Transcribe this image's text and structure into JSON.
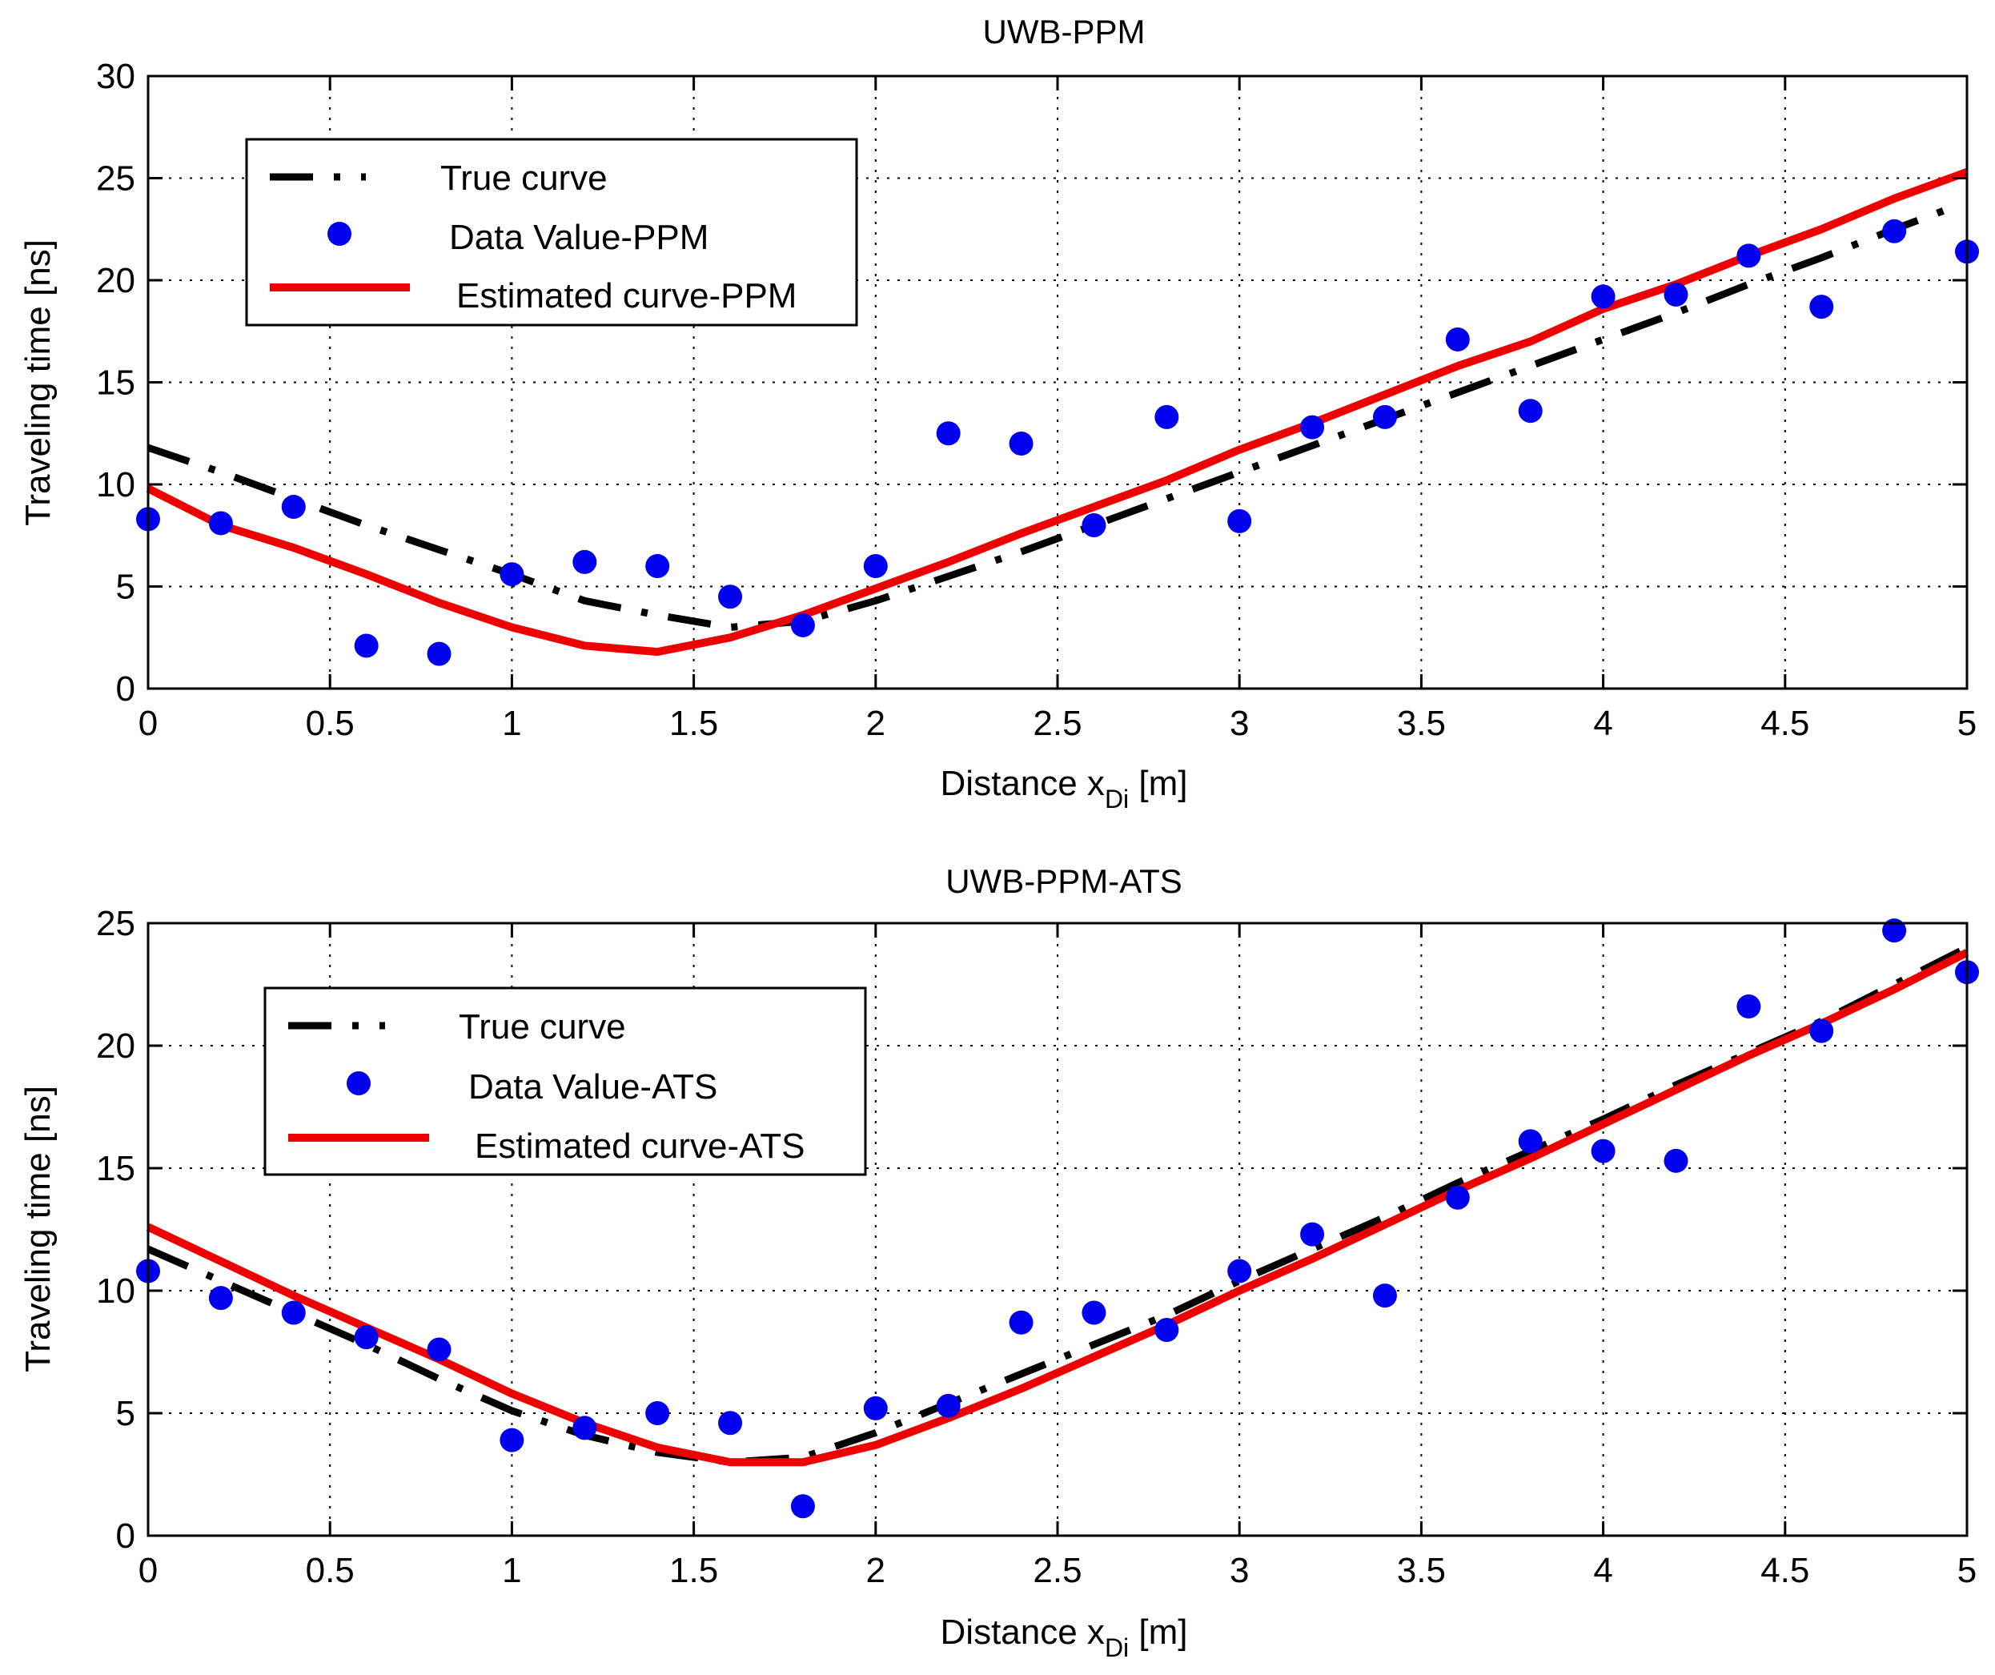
{
  "chart_data": [
    {
      "type": "line",
      "title": "UWB-PPM",
      "xlabel_main": "Distance x",
      "xlabel_sub": "Di",
      "xlabel_unit": " [m]",
      "ylabel": "Traveling time [ns]",
      "xlim": [
        0,
        5
      ],
      "ylim": [
        0,
        30
      ],
      "grid": true,
      "legend_position": "top-left",
      "x_ticks": [
        0,
        0.5,
        1,
        1.5,
        2,
        2.5,
        3,
        3.5,
        4,
        4.5,
        5
      ],
      "x_tick_labels": [
        "0",
        "0.5",
        "1",
        "1.5",
        "2",
        "2.5",
        "3",
        "3.5",
        "4",
        "4.5",
        "5"
      ],
      "y_ticks": [
        0,
        5,
        10,
        15,
        20,
        25,
        30
      ],
      "y_tick_labels": [
        "0",
        "5",
        "10",
        "15",
        "20",
        "25",
        "30"
      ],
      "series": [
        {
          "name": "True curve",
          "style": "dash-dot",
          "color": "#000000",
          "x": [
            0,
            0.2,
            0.4,
            0.6,
            0.8,
            1.0,
            1.2,
            1.4,
            1.6,
            1.8,
            2.0,
            2.2,
            2.4,
            2.6,
            2.8,
            3.0,
            3.2,
            3.4,
            3.6,
            3.8,
            4.0,
            4.2,
            4.4,
            4.6,
            4.8,
            4.95
          ],
          "y": [
            11.8,
            10.6,
            9.3,
            8.0,
            6.8,
            5.6,
            4.3,
            3.6,
            3.0,
            3.3,
            4.3,
            5.5,
            6.7,
            8.0,
            9.3,
            10.6,
            11.9,
            13.2,
            14.5,
            15.8,
            17.1,
            18.4,
            19.8,
            21.1,
            22.5,
            23.5
          ]
        },
        {
          "name": "Data Value-PPM",
          "style": "markers",
          "color": "#0000ee",
          "x": [
            0,
            0.2,
            0.4,
            0.6,
            0.8,
            1.0,
            1.2,
            1.4,
            1.6,
            1.8,
            2.0,
            2.2,
            2.4,
            2.6,
            2.8,
            3.0,
            3.2,
            3.4,
            3.6,
            3.8,
            4.0,
            4.2,
            4.4,
            4.6,
            4.8,
            5.0
          ],
          "y": [
            8.3,
            8.1,
            8.9,
            2.1,
            1.7,
            5.6,
            6.2,
            6.0,
            4.5,
            3.1,
            6.0,
            12.5,
            12.0,
            8.0,
            13.3,
            8.2,
            12.8,
            13.3,
            17.1,
            13.6,
            19.2,
            19.3,
            21.2,
            18.7,
            22.4,
            21.4
          ]
        },
        {
          "name": "Estimated curve-PPM",
          "style": "solid",
          "color": "#ee0000",
          "x": [
            0,
            0.2,
            0.4,
            0.6,
            0.8,
            1.0,
            1.2,
            1.4,
            1.6,
            1.8,
            2.0,
            2.2,
            2.4,
            2.6,
            2.8,
            3.0,
            3.2,
            3.4,
            3.6,
            3.8,
            4.0,
            4.2,
            4.4,
            4.6,
            4.8,
            5.0
          ],
          "y": [
            9.8,
            8.0,
            6.9,
            5.6,
            4.2,
            3.0,
            2.1,
            1.8,
            2.5,
            3.6,
            4.9,
            6.2,
            7.6,
            8.9,
            10.2,
            11.7,
            13.0,
            14.4,
            15.8,
            17.0,
            18.6,
            19.8,
            21.2,
            22.5,
            24.0,
            25.3
          ]
        }
      ]
    },
    {
      "type": "line",
      "title": "UWB-PPM-ATS",
      "xlabel_main": "Distance x",
      "xlabel_sub": "Di",
      "xlabel_unit": " [m]",
      "ylabel": "Traveling time [ns]",
      "xlim": [
        0,
        5
      ],
      "ylim": [
        0,
        25
      ],
      "grid": true,
      "legend_position": "top-left",
      "x_ticks": [
        0,
        0.5,
        1,
        1.5,
        2,
        2.5,
        3,
        3.5,
        4,
        4.5,
        5
      ],
      "x_tick_labels": [
        "0",
        "0.5",
        "1",
        "1.5",
        "2",
        "2.5",
        "3",
        "3.5",
        "4",
        "4.5",
        "5"
      ],
      "y_ticks": [
        0,
        5,
        10,
        15,
        20,
        25
      ],
      "y_tick_labels": [
        "0",
        "5",
        "10",
        "15",
        "20",
        "25"
      ],
      "series": [
        {
          "name": "True curve",
          "style": "dash-dot",
          "color": "#000000",
          "x": [
            0,
            0.2,
            0.4,
            0.6,
            0.8,
            1.0,
            1.2,
            1.4,
            1.6,
            1.8,
            2.0,
            2.2,
            2.4,
            2.6,
            2.8,
            3.0,
            3.2,
            3.4,
            3.6,
            3.8,
            4.0,
            4.2,
            4.4,
            4.6,
            4.8,
            5.0
          ],
          "y": [
            11.7,
            10.4,
            9.1,
            7.8,
            6.4,
            5.1,
            4.1,
            3.4,
            3.0,
            3.2,
            4.2,
            5.4,
            6.6,
            7.8,
            9.0,
            10.4,
            11.7,
            13.0,
            14.4,
            15.7,
            17.0,
            18.4,
            19.7,
            21.0,
            22.5,
            24.0
          ]
        },
        {
          "name": "Data Value-ATS",
          "style": "markers",
          "color": "#0000ee",
          "x": [
            0,
            0.2,
            0.4,
            0.6,
            0.8,
            1.0,
            1.2,
            1.4,
            1.6,
            1.8,
            2.0,
            2.2,
            2.4,
            2.6,
            2.8,
            3.0,
            3.2,
            3.4,
            3.6,
            3.8,
            4.0,
            4.2,
            4.4,
            4.6,
            4.8,
            5.0
          ],
          "y": [
            10.8,
            9.7,
            9.1,
            8.1,
            7.6,
            3.9,
            4.4,
            5.0,
            4.6,
            1.2,
            5.2,
            5.3,
            8.7,
            9.1,
            8.4,
            10.8,
            12.3,
            9.8,
            13.8,
            16.1,
            15.7,
            15.3,
            21.6,
            20.6,
            24.7,
            23.0
          ]
        },
        {
          "name": "Estimated curve-ATS",
          "style": "solid",
          "color": "#ee0000",
          "x": [
            0,
            0.2,
            0.4,
            0.6,
            0.8,
            1.0,
            1.2,
            1.4,
            1.6,
            1.8,
            2.0,
            2.2,
            2.4,
            2.6,
            2.8,
            3.0,
            3.2,
            3.4,
            3.6,
            3.8,
            4.0,
            4.2,
            4.4,
            4.6,
            4.8,
            5.0
          ],
          "y": [
            12.6,
            11.2,
            9.8,
            8.5,
            7.2,
            5.8,
            4.6,
            3.6,
            3.0,
            3.0,
            3.7,
            4.8,
            6.0,
            7.3,
            8.6,
            10.0,
            11.3,
            12.7,
            14.1,
            15.4,
            16.8,
            18.2,
            19.6,
            20.9,
            22.3,
            23.8
          ]
        }
      ]
    }
  ]
}
